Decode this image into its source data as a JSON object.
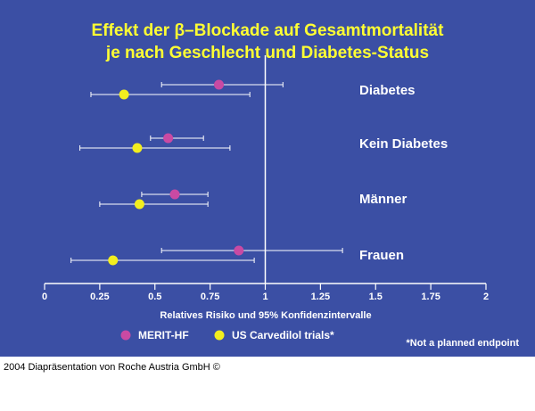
{
  "footer_text": "2004 Diapräsentation von Roche Austria GmbH ©",
  "chart_data": {
    "type": "scatter",
    "title_line1": "Effekt der β–Blockade auf Gesamtmortalität",
    "title_line2": "je nach Geschlecht und Diabetes-Status",
    "xlabel": "Relatives Risiko und 95% Konfidenzintervalle",
    "xlim": [
      0,
      2
    ],
    "xticks": [
      "0",
      "0.25",
      "0.5",
      "0.75",
      "1",
      "1.25",
      "1.5",
      "1.75",
      "2"
    ],
    "xtick_values": [
      0,
      0.25,
      0.5,
      0.75,
      1,
      1.25,
      1.5,
      1.75,
      2
    ],
    "reference_line": 1,
    "categories": [
      "Diabetes",
      "Kein Diabetes",
      "Männer",
      "Frauen"
    ],
    "series": [
      {
        "name": "MERIT-HF",
        "color": "#c94aa3",
        "points": [
          {
            "category": "Diabetes",
            "estimate": 0.79,
            "ci": [
              0.53,
              1.08
            ]
          },
          {
            "category": "Kein Diabetes",
            "estimate": 0.56,
            "ci": [
              0.48,
              0.72
            ]
          },
          {
            "category": "Männer",
            "estimate": 0.59,
            "ci": [
              0.44,
              0.74
            ]
          },
          {
            "category": "Frauen",
            "estimate": 0.88,
            "ci": [
              0.53,
              1.35
            ]
          }
        ]
      },
      {
        "name": "US Carvedilol trials*",
        "color": "#f2ee1e",
        "points": [
          {
            "category": "Diabetes",
            "estimate": 0.36,
            "ci": [
              0.21,
              0.93
            ]
          },
          {
            "category": "Kein Diabetes",
            "estimate": 0.42,
            "ci": [
              0.16,
              0.84
            ]
          },
          {
            "category": "Männer",
            "estimate": 0.43,
            "ci": [
              0.25,
              0.74
            ]
          },
          {
            "category": "Frauen",
            "estimate": 0.31,
            "ci": [
              0.12,
              0.95
            ]
          }
        ]
      }
    ],
    "annotation": "*Not a planned endpoint",
    "grid": false,
    "legend_position": "bottom-left"
  }
}
